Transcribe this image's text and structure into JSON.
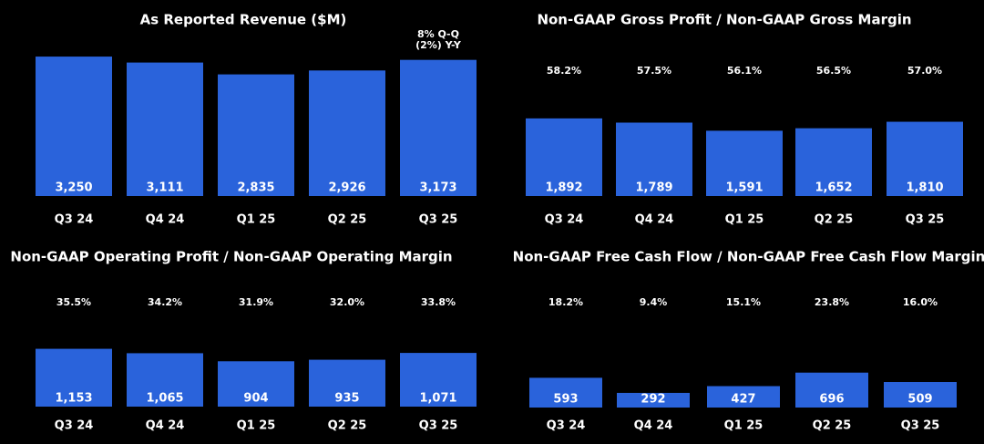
{
  "chart_data": [
    {
      "type": "bar",
      "title": "As Reported Revenue ($M)",
      "categories": [
        "Q3 24",
        "Q4 24",
        "Q1 25",
        "Q2 25",
        "Q3 25"
      ],
      "values": [
        3250,
        3111,
        2835,
        2926,
        3173
      ],
      "value_labels": [
        "3,250",
        "3,111",
        "2,835",
        "2,926",
        "3,173"
      ],
      "color": "#2a63db",
      "ylim": [
        0,
        3400
      ],
      "annotations": [
        "8% Q-Q",
        "(2%) Y-Y"
      ]
    },
    {
      "type": "bar",
      "title": "Non-GAAP Gross Profit / Non-GAAP Gross Margin",
      "categories": [
        "Q3 24",
        "Q4 24",
        "Q1 25",
        "Q2 25",
        "Q3 25"
      ],
      "values": [
        1892,
        1789,
        1591,
        1652,
        1810
      ],
      "value_labels": [
        "1,892",
        "1,789",
        "1,591",
        "1,652",
        "1,810"
      ],
      "margin_labels": [
        "58.2%",
        "57.5%",
        "56.1%",
        "56.5%",
        "57.0%"
      ],
      "color": "#2a63db",
      "ylim": [
        0,
        2000
      ]
    },
    {
      "type": "bar",
      "title": "Non-GAAP Operating Profit / Non-GAAP Operating Margin",
      "categories": [
        "Q3 24",
        "Q4 24",
        "Q1 25",
        "Q2 25",
        "Q3 25"
      ],
      "values": [
        1153,
        1065,
        904,
        935,
        1071
      ],
      "value_labels": [
        "1,153",
        "1,065",
        "904",
        "935",
        "1,071"
      ],
      "margin_labels": [
        "35.5%",
        "34.2%",
        "31.9%",
        "32.0%",
        "33.8%"
      ],
      "color": "#2a63db",
      "ylim": [
        0,
        1200
      ]
    },
    {
      "type": "bar",
      "title": "Non-GAAP Free Cash Flow / Non-GAAP Free Cash Flow Margin",
      "categories": [
        "Q3 24",
        "Q4 24",
        "Q1 25",
        "Q2 25",
        "Q3 25"
      ],
      "values": [
        593,
        292,
        427,
        696,
        509
      ],
      "value_labels": [
        "593",
        "292",
        "427",
        "696",
        "509"
      ],
      "margin_labels": [
        "18.2%",
        "9.4%",
        "15.1%",
        "23.8%",
        "16.0%"
      ],
      "color": "#2a63db",
      "ylim": [
        0,
        600
      ]
    }
  ]
}
